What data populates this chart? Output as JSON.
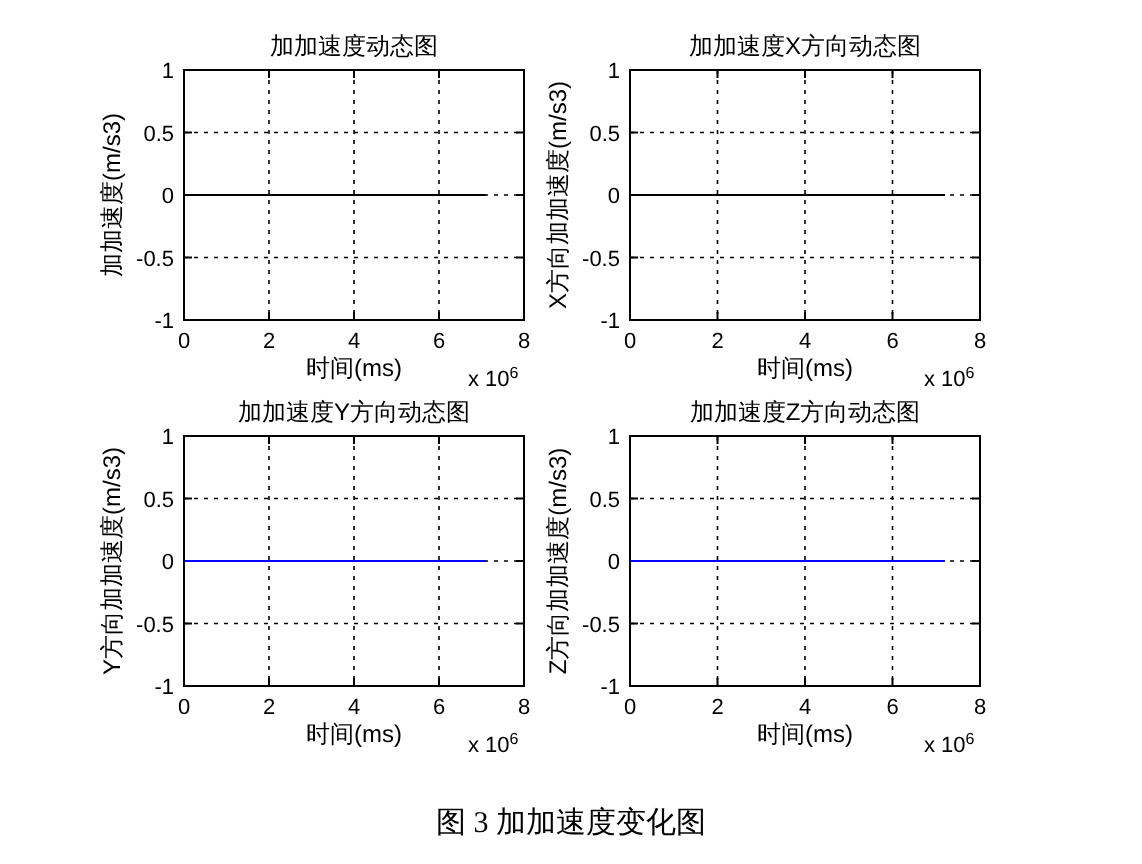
{
  "chart_data": [
    {
      "type": "line",
      "title": "加加速度动态图",
      "xlabel": "时间(ms)",
      "ylabel": "加加速度(m/s3)",
      "series": [
        {
          "color": "#000000",
          "x": [
            0,
            7.1
          ],
          "values": [
            0,
            0
          ]
        }
      ],
      "xlim": [
        0,
        8
      ],
      "xticks": [
        0,
        2,
        4,
        6,
        8
      ],
      "ylim": [
        -1,
        1
      ],
      "yticks": [
        -1,
        -0.5,
        0,
        0.5,
        1
      ],
      "grid": true,
      "line_style": "solid",
      "annotations": [
        "x 10$^{6}$"
      ]
    },
    {
      "type": "line",
      "title": "加加速度X方向动态图",
      "xlabel": "时间(ms)",
      "ylabel": "X方向加加速度(m/s3)",
      "series": [
        {
          "color": "#000000",
          "x": [
            0,
            7.2
          ],
          "values": [
            0,
            0
          ]
        }
      ],
      "xlim": [
        0,
        8
      ],
      "xticks": [
        0,
        2,
        4,
        6,
        8
      ],
      "ylim": [
        -1,
        1
      ],
      "yticks": [
        -1,
        -0.5,
        0,
        0.5,
        1
      ],
      "grid": true,
      "line_style": "solid",
      "annotations": [
        "x 10$^{6}$"
      ]
    },
    {
      "type": "line",
      "title": "加加速度Y方向动态图",
      "xlabel": "时间(ms)",
      "ylabel": "Y方向加加速度(m/s3)",
      "series": [
        {
          "color": "#0000ff",
          "x": [
            0,
            7.1
          ],
          "values": [
            0,
            0
          ]
        }
      ],
      "xlim": [
        0,
        8
      ],
      "xticks": [
        0,
        2,
        4,
        6,
        8
      ],
      "ylim": [
        -1,
        1
      ],
      "yticks": [
        -1,
        -0.5,
        0,
        0.5,
        1
      ],
      "grid": true,
      "line_style": "solid",
      "annotations": [
        "x 10$^{6}$"
      ]
    },
    {
      "type": "line",
      "title": "加加速度Z方向动态图",
      "xlabel": "时间(ms)",
      "ylabel": "Z方向加加速度(m/s3)",
      "series": [
        {
          "color": "#0000ff",
          "x": [
            0,
            7.2
          ],
          "values": [
            0,
            0
          ]
        }
      ],
      "xlim": [
        0,
        8
      ],
      "xticks": [
        0,
        2,
        4,
        6,
        8
      ],
      "ylim": [
        -1,
        1
      ],
      "yticks": [
        -1,
        -0.5,
        0,
        0.5,
        1
      ],
      "grid": true,
      "line_style": "solid",
      "annotations": [
        "x 10$^{6}$",
        "图 3 加加速度变化图"
      ]
    }
  ]
}
